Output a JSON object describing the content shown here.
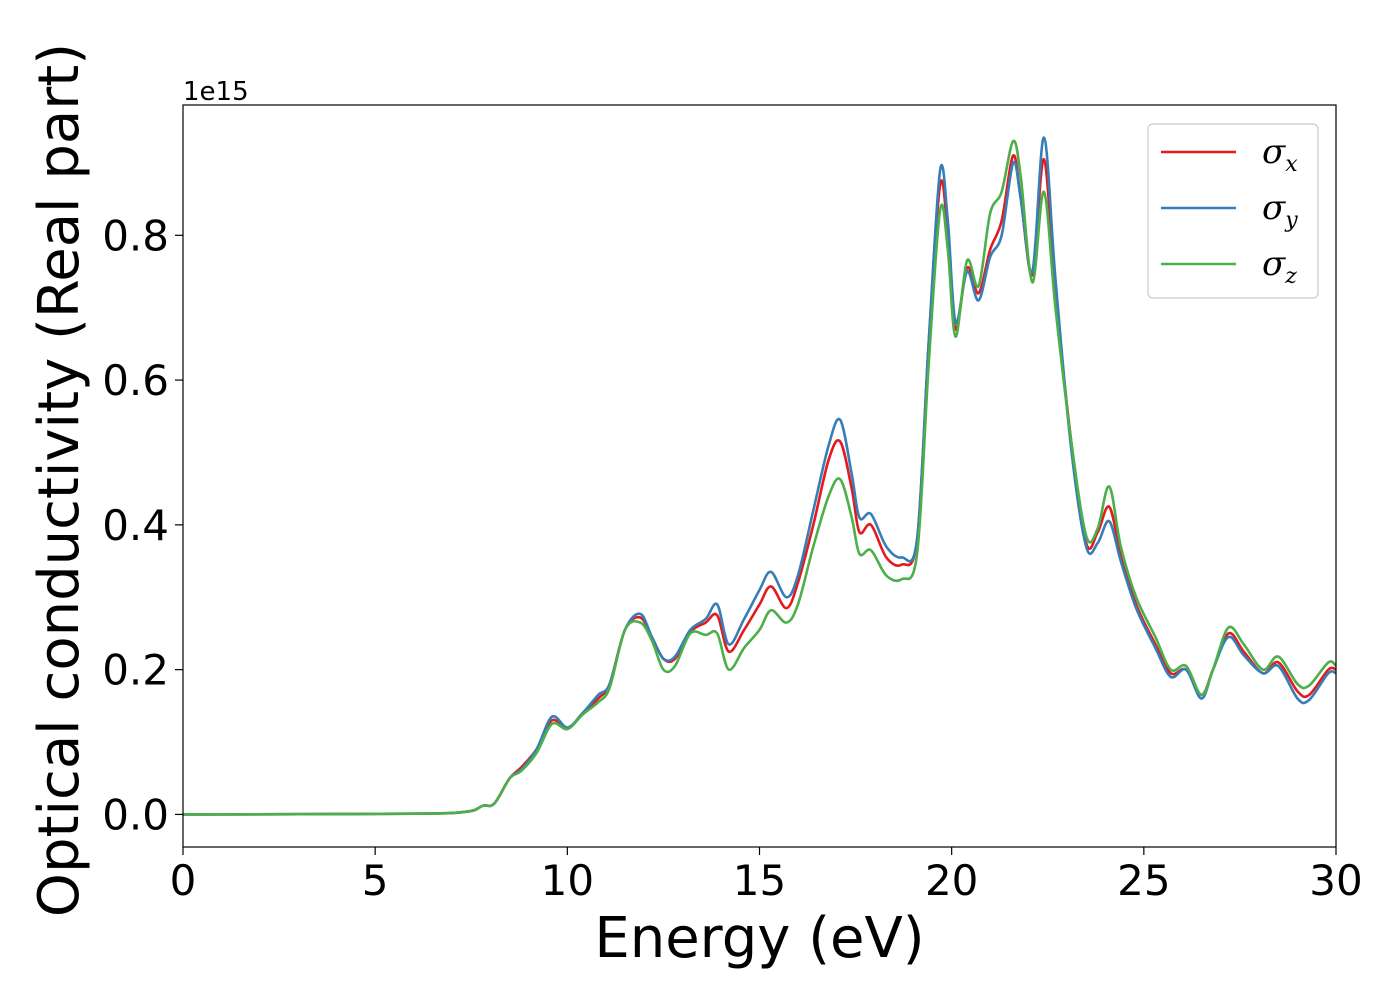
{
  "chart_data": {
    "type": "line",
    "title": "",
    "xlabel": "Energy (eV)",
    "ylabel": "Optical conductivity (Real part)",
    "y_offset_label": "1e15",
    "xlim": [
      0,
      30
    ],
    "ylim": [
      -0.045,
      0.98
    ],
    "xticks": [
      0,
      5,
      10,
      15,
      20,
      25,
      30
    ],
    "xtick_labels": [
      "0",
      "5",
      "10",
      "15",
      "20",
      "25",
      "30"
    ],
    "yticks": [
      0.0,
      0.2,
      0.4,
      0.6,
      0.8
    ],
    "ytick_labels": [
      "0.0",
      "0.2",
      "0.4",
      "0.6",
      "0.8"
    ],
    "grid": false,
    "legend_position": "top-right",
    "series": [
      {
        "name": "σx",
        "name_base": "σ",
        "name_sub": "x",
        "color": "#e41a1c",
        "points": [
          [
            0,
            0
          ],
          [
            6,
            0.001
          ],
          [
            7.4,
            0.004
          ],
          [
            7.8,
            0.012
          ],
          [
            8.1,
            0.015
          ],
          [
            8.5,
            0.05
          ],
          [
            8.8,
            0.065
          ],
          [
            9.2,
            0.09
          ],
          [
            9.6,
            0.13
          ],
          [
            10,
            0.118
          ],
          [
            10.4,
            0.14
          ],
          [
            10.8,
            0.16
          ],
          [
            11.1,
            0.18
          ],
          [
            11.5,
            0.255
          ],
          [
            11.9,
            0.272
          ],
          [
            12.2,
            0.245
          ],
          [
            12.5,
            0.215
          ],
          [
            12.8,
            0.215
          ],
          [
            13.2,
            0.252
          ],
          [
            13.6,
            0.265
          ],
          [
            13.9,
            0.275
          ],
          [
            14.2,
            0.225
          ],
          [
            14.6,
            0.255
          ],
          [
            15,
            0.29
          ],
          [
            15.3,
            0.315
          ],
          [
            15.7,
            0.285
          ],
          [
            16,
            0.32
          ],
          [
            16.4,
            0.4
          ],
          [
            16.8,
            0.49
          ],
          [
            17.1,
            0.515
          ],
          [
            17.4,
            0.45
          ],
          [
            17.6,
            0.39
          ],
          [
            17.9,
            0.4
          ],
          [
            18.3,
            0.355
          ],
          [
            18.7,
            0.345
          ],
          [
            19.1,
            0.38
          ],
          [
            19.4,
            0.65
          ],
          [
            19.7,
            0.87
          ],
          [
            19.9,
            0.8
          ],
          [
            20.1,
            0.67
          ],
          [
            20.4,
            0.755
          ],
          [
            20.7,
            0.72
          ],
          [
            21.0,
            0.78
          ],
          [
            21.3,
            0.82
          ],
          [
            21.6,
            0.91
          ],
          [
            21.8,
            0.85
          ],
          [
            22.1,
            0.745
          ],
          [
            22.4,
            0.905
          ],
          [
            22.7,
            0.72
          ],
          [
            23.1,
            0.52
          ],
          [
            23.5,
            0.375
          ],
          [
            23.8,
            0.39
          ],
          [
            24.1,
            0.425
          ],
          [
            24.4,
            0.36
          ],
          [
            24.8,
            0.29
          ],
          [
            25.3,
            0.235
          ],
          [
            25.7,
            0.195
          ],
          [
            26.1,
            0.2
          ],
          [
            26.5,
            0.165
          ],
          [
            26.8,
            0.2
          ],
          [
            27.2,
            0.25
          ],
          [
            27.6,
            0.225
          ],
          [
            28.1,
            0.195
          ],
          [
            28.5,
            0.21
          ],
          [
            29,
            0.17
          ],
          [
            29.3,
            0.165
          ],
          [
            29.8,
            0.2
          ],
          [
            30,
            0.2
          ]
        ]
      },
      {
        "name": "σy",
        "name_base": "σ",
        "name_sub": "y",
        "color": "#377eb8",
        "points": [
          [
            0,
            0
          ],
          [
            6,
            0.001
          ],
          [
            7.4,
            0.004
          ],
          [
            7.8,
            0.012
          ],
          [
            8.1,
            0.015
          ],
          [
            8.5,
            0.05
          ],
          [
            8.8,
            0.062
          ],
          [
            9.2,
            0.09
          ],
          [
            9.6,
            0.135
          ],
          [
            10,
            0.12
          ],
          [
            10.4,
            0.14
          ],
          [
            10.8,
            0.165
          ],
          [
            11.1,
            0.18
          ],
          [
            11.5,
            0.255
          ],
          [
            11.9,
            0.277
          ],
          [
            12.2,
            0.245
          ],
          [
            12.5,
            0.215
          ],
          [
            12.8,
            0.218
          ],
          [
            13.2,
            0.255
          ],
          [
            13.6,
            0.27
          ],
          [
            13.9,
            0.29
          ],
          [
            14.2,
            0.235
          ],
          [
            14.6,
            0.27
          ],
          [
            15,
            0.31
          ],
          [
            15.3,
            0.335
          ],
          [
            15.7,
            0.3
          ],
          [
            16,
            0.33
          ],
          [
            16.4,
            0.42
          ],
          [
            16.8,
            0.51
          ],
          [
            17.1,
            0.545
          ],
          [
            17.4,
            0.47
          ],
          [
            17.6,
            0.41
          ],
          [
            17.9,
            0.415
          ],
          [
            18.3,
            0.37
          ],
          [
            18.7,
            0.355
          ],
          [
            19.1,
            0.38
          ],
          [
            19.4,
            0.65
          ],
          [
            19.7,
            0.89
          ],
          [
            19.9,
            0.82
          ],
          [
            20.1,
            0.68
          ],
          [
            20.4,
            0.75
          ],
          [
            20.7,
            0.71
          ],
          [
            21.0,
            0.77
          ],
          [
            21.3,
            0.8
          ],
          [
            21.6,
            0.9
          ],
          [
            21.8,
            0.85
          ],
          [
            22.1,
            0.75
          ],
          [
            22.4,
            0.935
          ],
          [
            22.7,
            0.74
          ],
          [
            23.1,
            0.51
          ],
          [
            23.5,
            0.37
          ],
          [
            23.8,
            0.375
          ],
          [
            24.1,
            0.405
          ],
          [
            24.4,
            0.35
          ],
          [
            24.8,
            0.285
          ],
          [
            25.3,
            0.23
          ],
          [
            25.7,
            0.19
          ],
          [
            26.1,
            0.2
          ],
          [
            26.5,
            0.16
          ],
          [
            26.8,
            0.2
          ],
          [
            27.2,
            0.245
          ],
          [
            27.6,
            0.22
          ],
          [
            28.1,
            0.195
          ],
          [
            28.5,
            0.205
          ],
          [
            29,
            0.16
          ],
          [
            29.3,
            0.158
          ],
          [
            29.8,
            0.195
          ],
          [
            30,
            0.195
          ]
        ]
      },
      {
        "name": "σz",
        "name_base": "σ",
        "name_sub": "z",
        "color": "#4daf4a",
        "points": [
          [
            0,
            0
          ],
          [
            6,
            0.001
          ],
          [
            7.4,
            0.004
          ],
          [
            7.8,
            0.012
          ],
          [
            8.1,
            0.015
          ],
          [
            8.5,
            0.05
          ],
          [
            8.8,
            0.06
          ],
          [
            9.2,
            0.085
          ],
          [
            9.6,
            0.125
          ],
          [
            10,
            0.118
          ],
          [
            10.4,
            0.138
          ],
          [
            10.8,
            0.155
          ],
          [
            11.1,
            0.175
          ],
          [
            11.5,
            0.255
          ],
          [
            11.9,
            0.265
          ],
          [
            12.2,
            0.24
          ],
          [
            12.5,
            0.2
          ],
          [
            12.8,
            0.205
          ],
          [
            13.2,
            0.25
          ],
          [
            13.6,
            0.248
          ],
          [
            13.9,
            0.25
          ],
          [
            14.2,
            0.2
          ],
          [
            14.6,
            0.23
          ],
          [
            15,
            0.255
          ],
          [
            15.3,
            0.282
          ],
          [
            15.7,
            0.265
          ],
          [
            16,
            0.29
          ],
          [
            16.4,
            0.37
          ],
          [
            16.8,
            0.44
          ],
          [
            17.1,
            0.463
          ],
          [
            17.4,
            0.41
          ],
          [
            17.6,
            0.36
          ],
          [
            17.9,
            0.365
          ],
          [
            18.3,
            0.33
          ],
          [
            18.7,
            0.325
          ],
          [
            19.1,
            0.36
          ],
          [
            19.4,
            0.62
          ],
          [
            19.7,
            0.835
          ],
          [
            19.9,
            0.78
          ],
          [
            20.1,
            0.66
          ],
          [
            20.4,
            0.765
          ],
          [
            20.7,
            0.73
          ],
          [
            21.0,
            0.83
          ],
          [
            21.3,
            0.86
          ],
          [
            21.6,
            0.93
          ],
          [
            21.8,
            0.88
          ],
          [
            22.1,
            0.735
          ],
          [
            22.4,
            0.86
          ],
          [
            22.7,
            0.7
          ],
          [
            23.1,
            0.52
          ],
          [
            23.5,
            0.385
          ],
          [
            23.8,
            0.395
          ],
          [
            24.1,
            0.453
          ],
          [
            24.4,
            0.37
          ],
          [
            24.8,
            0.3
          ],
          [
            25.3,
            0.245
          ],
          [
            25.7,
            0.2
          ],
          [
            26.1,
            0.205
          ],
          [
            26.5,
            0.165
          ],
          [
            26.8,
            0.2
          ],
          [
            27.2,
            0.258
          ],
          [
            27.6,
            0.235
          ],
          [
            28.1,
            0.2
          ],
          [
            28.5,
            0.218
          ],
          [
            29,
            0.18
          ],
          [
            29.3,
            0.178
          ],
          [
            29.8,
            0.21
          ],
          [
            30,
            0.205
          ]
        ]
      }
    ]
  }
}
